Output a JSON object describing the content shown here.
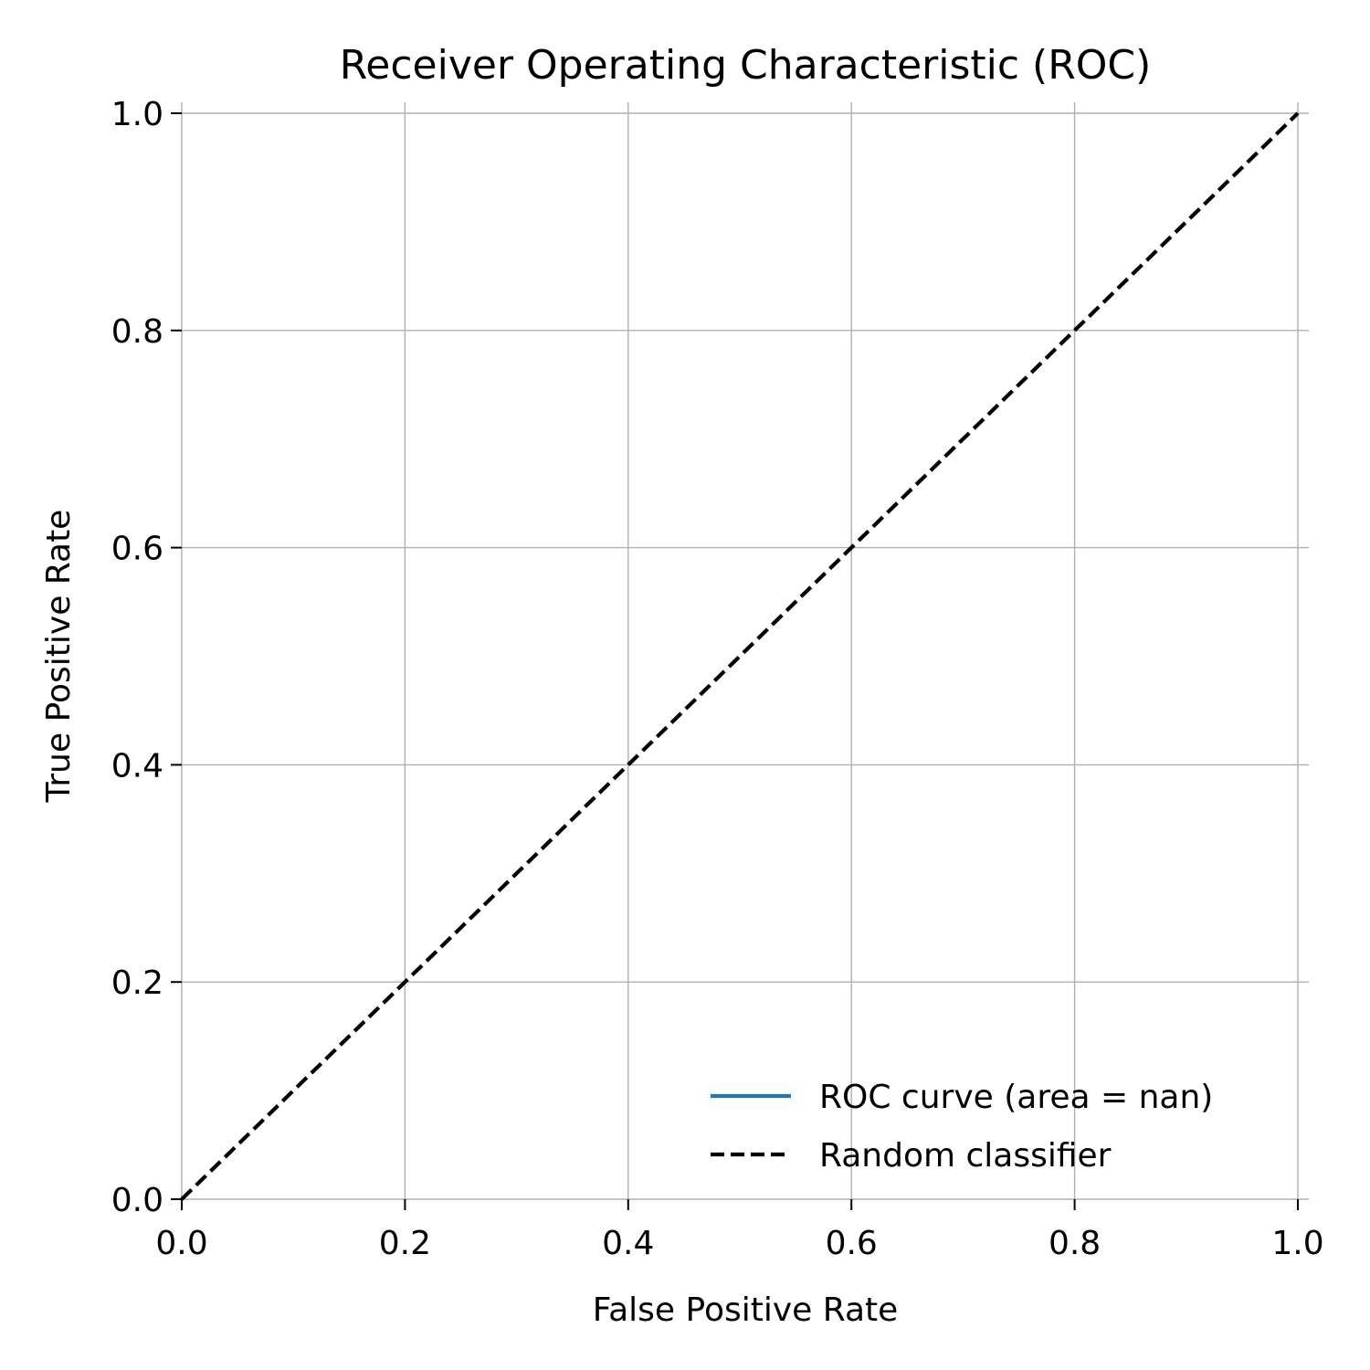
{
  "chart_data": {
    "type": "line",
    "title": "Receiver Operating Characteristic (ROC)",
    "xlabel": "False Positive Rate",
    "ylabel": "True Positive Rate",
    "xlim": [
      0.0,
      1.0
    ],
    "ylim": [
      0.0,
      1.0
    ],
    "x_ticks": [
      "0.0",
      "0.2",
      "0.4",
      "0.6",
      "0.8",
      "1.0"
    ],
    "y_ticks": [
      "0.0",
      "0.2",
      "0.4",
      "0.6",
      "0.8",
      "1.0"
    ],
    "grid": true,
    "legend_position": "lower-right",
    "series": [
      {
        "name": "ROC curve (area = nan)",
        "color": "#1f77b4",
        "style": "solid",
        "x": [],
        "y": []
      },
      {
        "name": "Random classifier",
        "color": "#000000",
        "style": "dashed",
        "x": [
          0.0,
          1.0
        ],
        "y": [
          0.0,
          1.0
        ]
      }
    ]
  }
}
